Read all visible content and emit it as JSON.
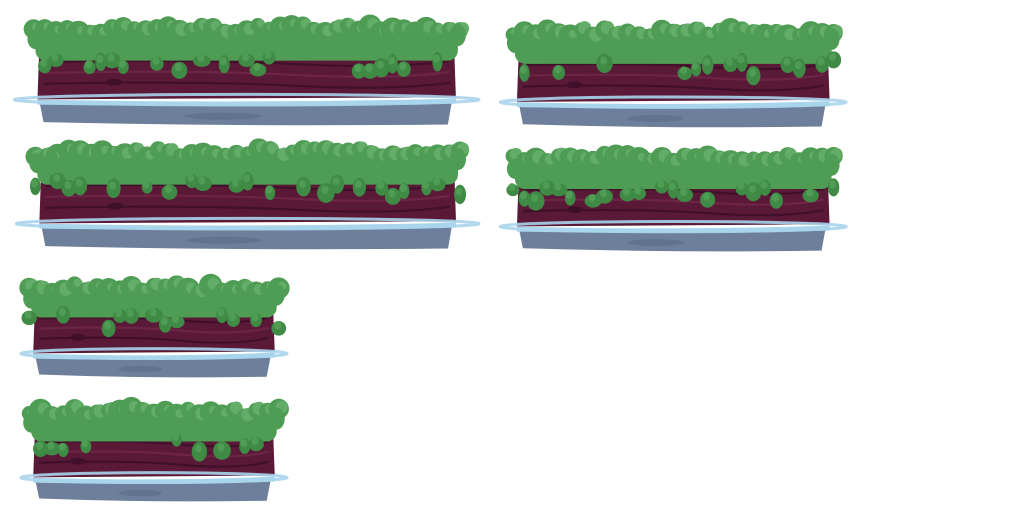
{
  "scene": {
    "description_name": "swamp-log-platform-sprite-sheet",
    "background": "#ffffff"
  },
  "palette": {
    "moss_dark": "#3f8a45",
    "moss_mid": "#4f9d55",
    "moss_light": "#63ad69",
    "wood": "#5a1a37",
    "wood_light": "#6e2545",
    "wood_dark": "#40102a",
    "water": "#a8d4ec",
    "reflection": "#6e7f9b",
    "reflection_dark": "#5a6a85"
  },
  "sprites": [
    {
      "id": "long-log-1",
      "size": "long"
    },
    {
      "id": "medium-log-1",
      "size": "medium"
    },
    {
      "id": "long-log-2",
      "size": "long"
    },
    {
      "id": "medium-log-2",
      "size": "medium"
    },
    {
      "id": "short-log-1",
      "size": "short"
    },
    {
      "id": "short-log-2",
      "size": "short"
    }
  ]
}
